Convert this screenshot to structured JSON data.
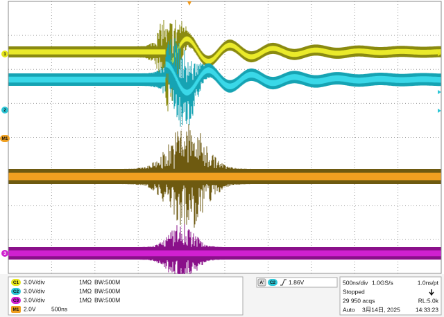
{
  "channels": [
    {
      "label": "C1",
      "scale": "3.0V/div",
      "impedance": "1MΩ",
      "bandwidth": "BW:500M"
    },
    {
      "label": "C2",
      "scale": "3.0V/div",
      "impedance": "1MΩ",
      "bandwidth": "BW:500M"
    },
    {
      "label": "C3",
      "scale": "3.0V/div",
      "impedance": "1MΩ",
      "bandwidth": "BW:500M"
    }
  ],
  "math": {
    "label": "M1",
    "scale": "2.0V",
    "timebase": "500ns"
  },
  "markers": [
    "1",
    "2",
    "M1",
    "3"
  ],
  "trigger": {
    "mode": "A'",
    "source": "C2",
    "level": "1.86V"
  },
  "acquisition": {
    "timebase": "500ns/div",
    "sample_rate": "1.0GS/s",
    "resolution": "1.0ns/pt",
    "state": "Stopped",
    "count": "29 950 acqs",
    "record_length": "RL:5.0k",
    "trigger_mode": "Auto",
    "date": "3月14日, 2025",
    "time": "14:33:23"
  }
}
